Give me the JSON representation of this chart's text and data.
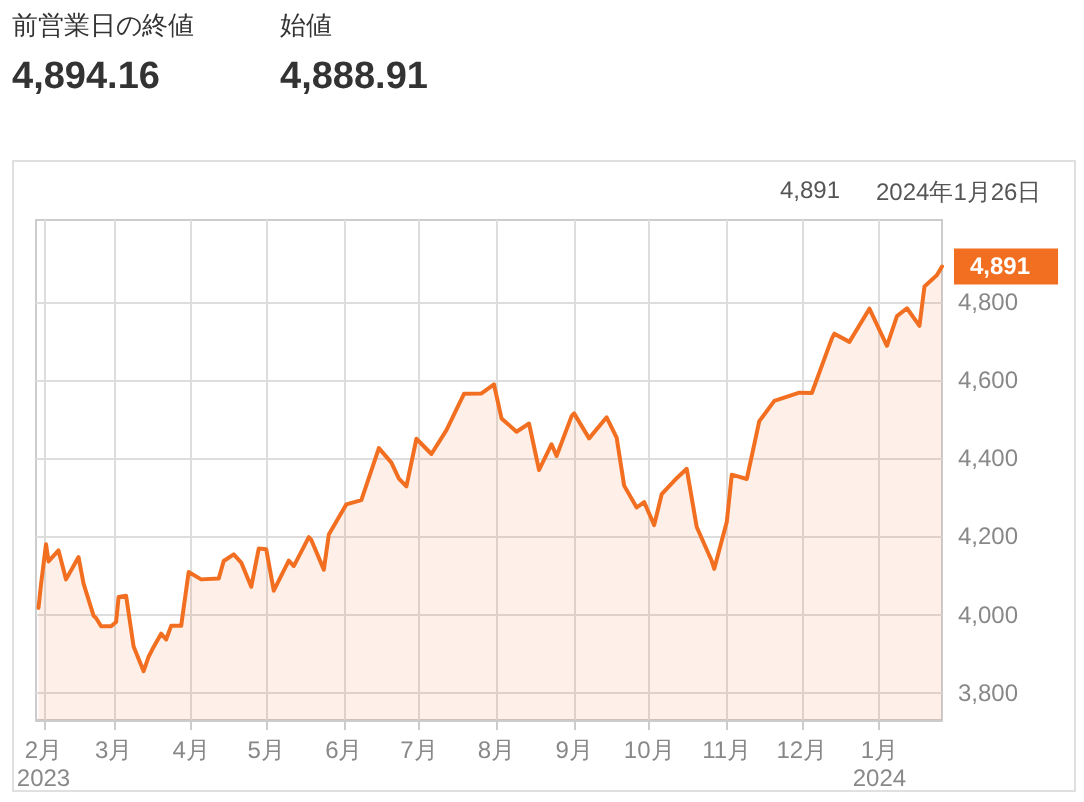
{
  "chart_data": {
    "type": "area",
    "color": "#f26f21",
    "annotations": [
      "前営業日の終値",
      "4,894.16",
      "始値",
      "4,888.91",
      "4,891",
      "2024年1月26日"
    ],
    "x": [
      "2023-01-30",
      "2023-01-31",
      "2023-02-02",
      "2023-02-03",
      "2023-02-07",
      "2023-02-10",
      "2023-02-14",
      "2023-02-15",
      "2023-02-17",
      "2023-02-21",
      "2023-02-22",
      "2023-02-24",
      "2023-02-28",
      "2023-03-02",
      "2023-03-03",
      "2023-03-06",
      "2023-03-09",
      "2023-03-13",
      "2023-03-15",
      "2023-03-17",
      "2023-03-20",
      "2023-03-22",
      "2023-03-24",
      "2023-03-28",
      "2023-03-31",
      "2023-04-05",
      "2023-04-12",
      "2023-04-14",
      "2023-04-18",
      "2023-04-21",
      "2023-04-25",
      "2023-04-28",
      "2023-05-01",
      "2023-05-04",
      "2023-05-10",
      "2023-05-12",
      "2023-05-18",
      "2023-05-19",
      "2023-05-24",
      "2023-05-26",
      "2023-06-02",
      "2023-06-08",
      "2023-06-15",
      "2023-06-20",
      "2023-06-23",
      "2023-06-26",
      "2023-06-30",
      "2023-07-06",
      "2023-07-12",
      "2023-07-19",
      "2023-07-26",
      "2023-07-31",
      "2023-08-03",
      "2023-08-09",
      "2023-08-14",
      "2023-08-18",
      "2023-08-23",
      "2023-08-25",
      "2023-08-31",
      "2023-09-01",
      "2023-09-07",
      "2023-09-14",
      "2023-09-18",
      "2023-09-21",
      "2023-09-26",
      "2023-09-29",
      "2023-10-03",
      "2023-10-06",
      "2023-10-12",
      "2023-10-16",
      "2023-10-20",
      "2023-10-26",
      "2023-10-27",
      "2023-11-01",
      "2023-11-03",
      "2023-11-09",
      "2023-11-14",
      "2023-11-20",
      "2023-11-30",
      "2023-12-05",
      "2023-12-13",
      "2023-12-14",
      "2023-12-20",
      "2023-12-28",
      "2024-01-04",
      "2024-01-08",
      "2024-01-12",
      "2024-01-17",
      "2024-01-19",
      "2024-01-24",
      "2024-01-26"
    ],
    "values": [
      4017,
      4077,
      4180,
      4136,
      4164,
      4090,
      4136,
      4147,
      4079,
      3997,
      3991,
      3970,
      3970,
      3981,
      4045,
      4048,
      3918,
      3855,
      3892,
      3917,
      3951,
      3936,
      3971,
      3971,
      4109,
      4090,
      4092,
      4137,
      4154,
      4133,
      4071,
      4169,
      4167,
      4061,
      4138,
      4124,
      4198,
      4191,
      4115,
      4205,
      4282,
      4293,
      4426,
      4389,
      4348,
      4328,
      4450,
      4411,
      4472,
      4565,
      4566,
      4589,
      4502,
      4468,
      4489,
      4370,
      4436,
      4406,
      4508,
      4515,
      4451,
      4505,
      4453,
      4330,
      4274,
      4288,
      4229,
      4308,
      4349,
      4373,
      4224,
      4137,
      4117,
      4237,
      4358,
      4347,
      4495,
      4547,
      4568,
      4567,
      4707,
      4719,
      4698,
      4783,
      4688,
      4764,
      4784,
      4739,
      4840,
      4869,
      4891
    ],
    "value_labels": [
      null,
      null,
      null,
      null,
      null,
      null,
      null,
      null,
      null,
      null,
      null,
      null,
      null,
      null,
      null,
      null,
      null,
      null,
      null,
      null,
      null,
      null,
      null,
      null,
      null,
      null,
      null,
      null,
      null,
      null,
      null,
      null,
      null,
      null,
      null,
      null,
      null,
      null,
      null,
      null,
      null,
      null,
      null,
      null,
      null,
      null,
      null,
      null,
      null,
      null,
      null,
      null,
      null,
      null,
      null,
      null,
      null,
      null,
      null,
      null,
      null,
      null,
      null,
      null,
      null,
      null,
      null,
      null,
      null,
      null,
      null,
      null,
      null,
      null,
      null,
      null,
      null,
      null,
      null,
      null,
      null,
      null,
      null,
      null,
      null,
      null,
      null,
      null,
      null,
      null,
      "4,891"
    ],
    "xlim": [
      "2023-01-29",
      "2024-01-26"
    ],
    "xticks": [
      {
        "value": "2023-02-01",
        "label": "2月\n2023"
      },
      {
        "value": "2023-03-01",
        "label": "3月"
      },
      {
        "value": "2023-04-01",
        "label": "4月"
      },
      {
        "value": "2023-05-01",
        "label": "5月"
      },
      {
        "value": "2023-06-01",
        "label": "6月"
      },
      {
        "value": "2023-07-01",
        "label": "7月"
      },
      {
        "value": "2023-08-01",
        "label": "8月"
      },
      {
        "value": "2023-09-01",
        "label": "9月"
      },
      {
        "value": "2023-10-01",
        "label": "10月"
      },
      {
        "value": "2023-11-01",
        "label": "11月"
      },
      {
        "value": "2023-12-01",
        "label": "12月"
      },
      {
        "value": "2024-01-01",
        "label": "1月\n2024"
      }
    ],
    "ylim": [
      3730,
      5010
    ],
    "yticks": [
      {
        "value": 3800,
        "label": "3,800"
      },
      {
        "value": 4000,
        "label": "4,000"
      },
      {
        "value": 4200,
        "label": "4,200"
      },
      {
        "value": 4400,
        "label": "4,400"
      },
      {
        "value": 4600,
        "label": "4,600"
      },
      {
        "value": 4800,
        "label": "4,800"
      }
    ],
    "grid": true,
    "marker": "none",
    "line_style": "solid"
  }
}
